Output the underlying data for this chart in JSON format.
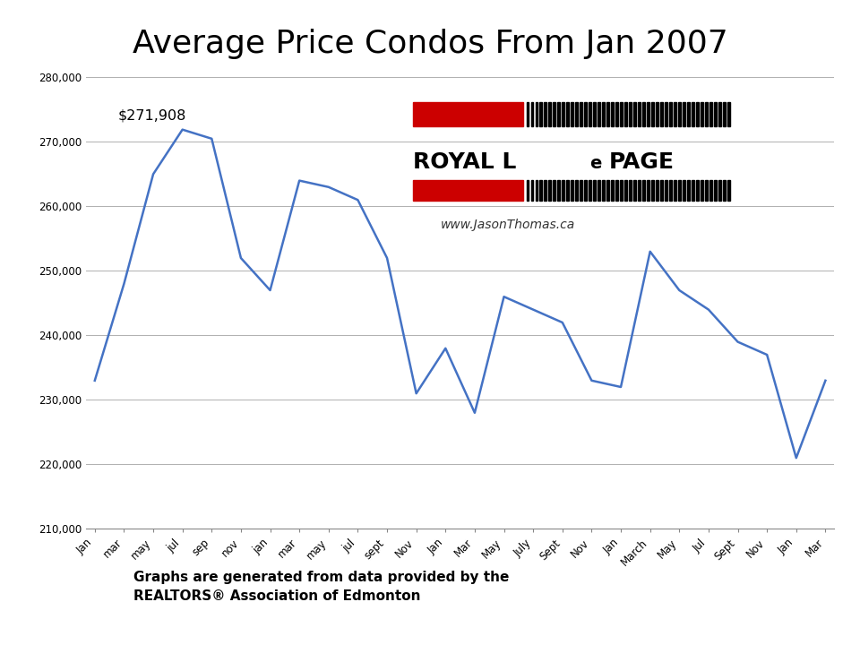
{
  "title": "Average Price Condos From Jan 2007",
  "title_fontsize": 26,
  "annotation": "$271,908",
  "footer_line1": "Graphs are generated from data provided by the",
  "footer_line2": "REALTORS® Association of Edmonton",
  "x_labels": [
    "Jan",
    "mar",
    "may",
    "jul",
    "sep",
    "nov",
    "jan",
    "mar",
    "may",
    "jul",
    "sept",
    "Nov",
    "Jan",
    "Mar",
    "May",
    "July",
    "Sept",
    "Nov",
    "Jan",
    "March",
    "May",
    "Jul",
    "Sept",
    "Nov",
    "Jan",
    "Mar"
  ],
  "values": [
    233000,
    248000,
    265000,
    271908,
    270500,
    252000,
    247000,
    264000,
    263000,
    261000,
    252000,
    231000,
    238000,
    228000,
    246000,
    244000,
    242000,
    233000,
    232000,
    253000,
    247000,
    244000,
    239000,
    237000,
    221000,
    233000
  ],
  "ylim_min": 210000,
  "ylim_max": 280000,
  "ytick_step": 10000,
  "line_color": "#4472C4",
  "line_width": 1.8,
  "background_color": "#FFFFFF",
  "grid_color": "#B0B0B0",
  "peak_index": 3,
  "logo_red": "#CC0000",
  "logo_text_color": "#000000",
  "website_color": "#333333"
}
